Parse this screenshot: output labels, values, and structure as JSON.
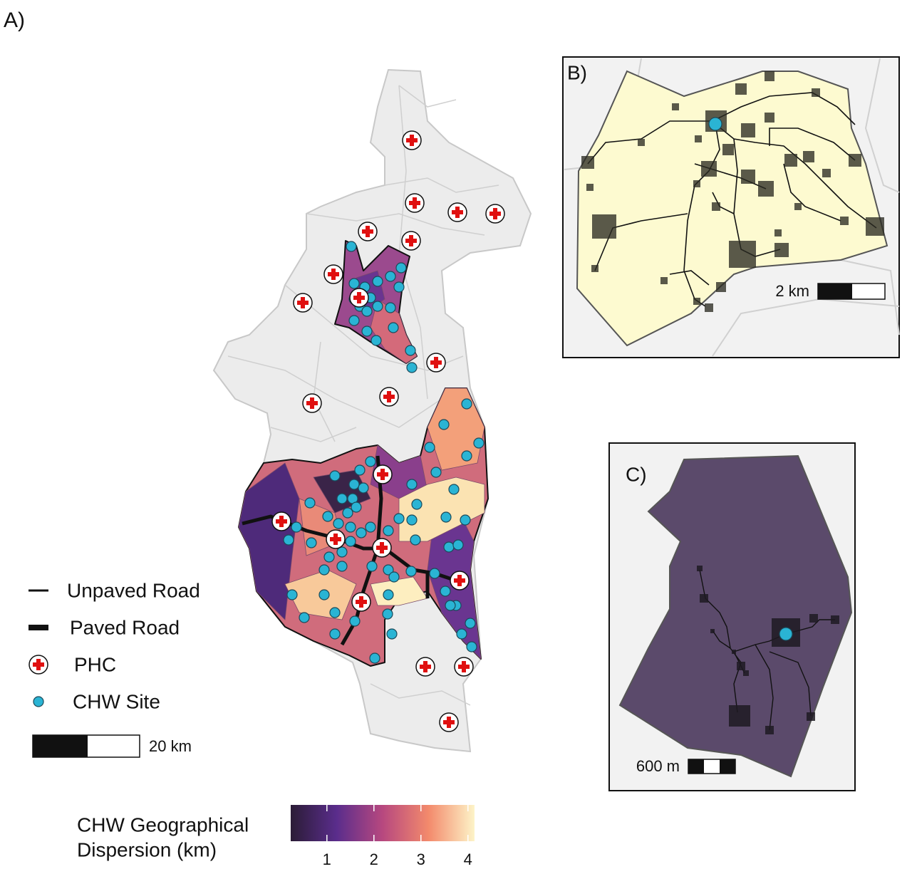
{
  "panels": {
    "a": {
      "label": "A)"
    },
    "b": {
      "label": "B)",
      "scale": "2 km"
    },
    "c": {
      "label": "C)",
      "scale": "600 m"
    }
  },
  "legend": {
    "items": [
      "Unpaved Road",
      "Paved Road",
      "PHC",
      "CHW Site"
    ],
    "scale": "20 km"
  },
  "colorbar": {
    "title": [
      "CHW Geographical",
      "Dispersion (km)"
    ],
    "lim": [
      0.23,
      4.14
    ],
    "ticks": [
      1,
      2,
      3,
      4
    ]
  }
}
